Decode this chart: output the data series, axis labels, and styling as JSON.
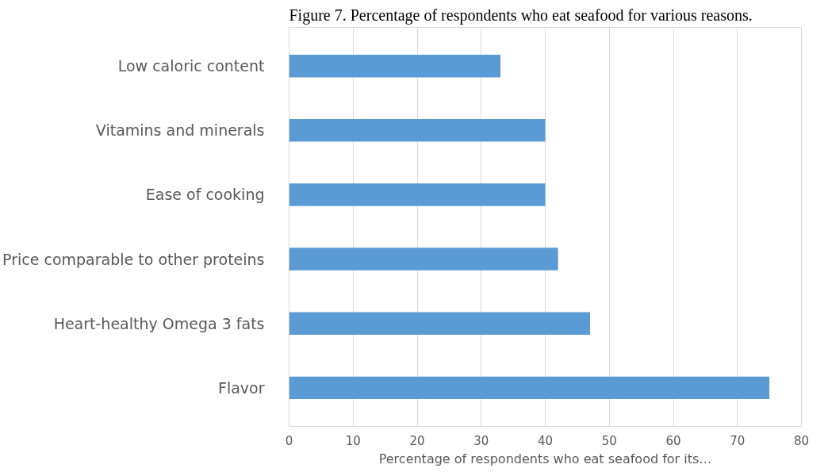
{
  "chart_data": {
    "type": "bar",
    "orientation": "horizontal",
    "title": "Figure 7. Percentage of respondents who eat seafood for various reasons.",
    "categories": [
      "Low caloric content",
      "Vitamins and minerals",
      "Ease of cooking",
      "Price comparable to other proteins",
      "Heart-healthy Omega 3 fats",
      "Flavor"
    ],
    "values": [
      33,
      40,
      40,
      42,
      47,
      75
    ],
    "color": "#5b9bd5",
    "xlabel": "Percentage of respondents who eat seafood for its…",
    "xlim": [
      0,
      80
    ],
    "xticks": [
      0,
      10,
      20,
      30,
      40,
      50,
      60,
      70,
      80
    ],
    "grid": "x"
  }
}
